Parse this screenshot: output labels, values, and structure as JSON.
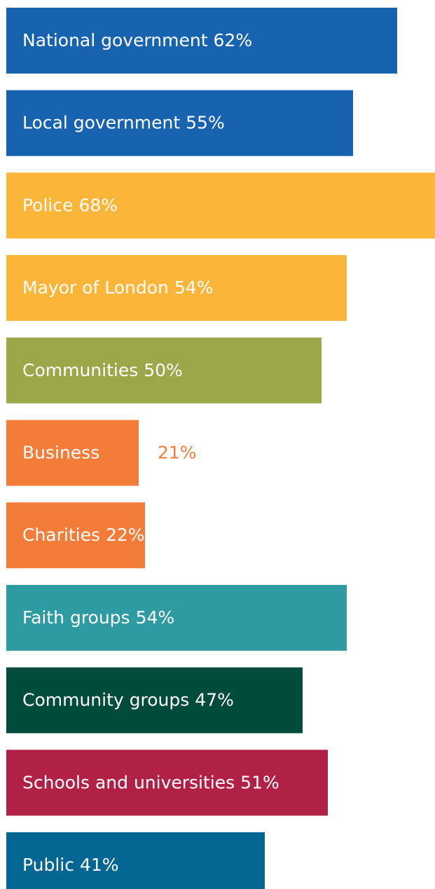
{
  "chart_data": {
    "type": "bar",
    "orientation": "horizontal",
    "categories": [
      "National government",
      "Local government",
      "Police",
      "Mayor of London",
      "Communities",
      "Business",
      "Charities",
      "Faith groups",
      "Community groups",
      "Schools and universities",
      "Public"
    ],
    "values": [
      62,
      55,
      68,
      54,
      50,
      21,
      22,
      54,
      47,
      51,
      41
    ],
    "value_labels": [
      "62%",
      "55%",
      "68%",
      "54%",
      "50%",
      "21%",
      "22%",
      "54%",
      "47%",
      "51%",
      "41%"
    ],
    "colors": [
      "#1763b0",
      "#1763b0",
      "#fbb539",
      "#fbb539",
      "#9ba748",
      "#f47c39",
      "#f47c39",
      "#2e9ba3",
      "#004c3c",
      "#b12146",
      "#036693"
    ]
  }
}
